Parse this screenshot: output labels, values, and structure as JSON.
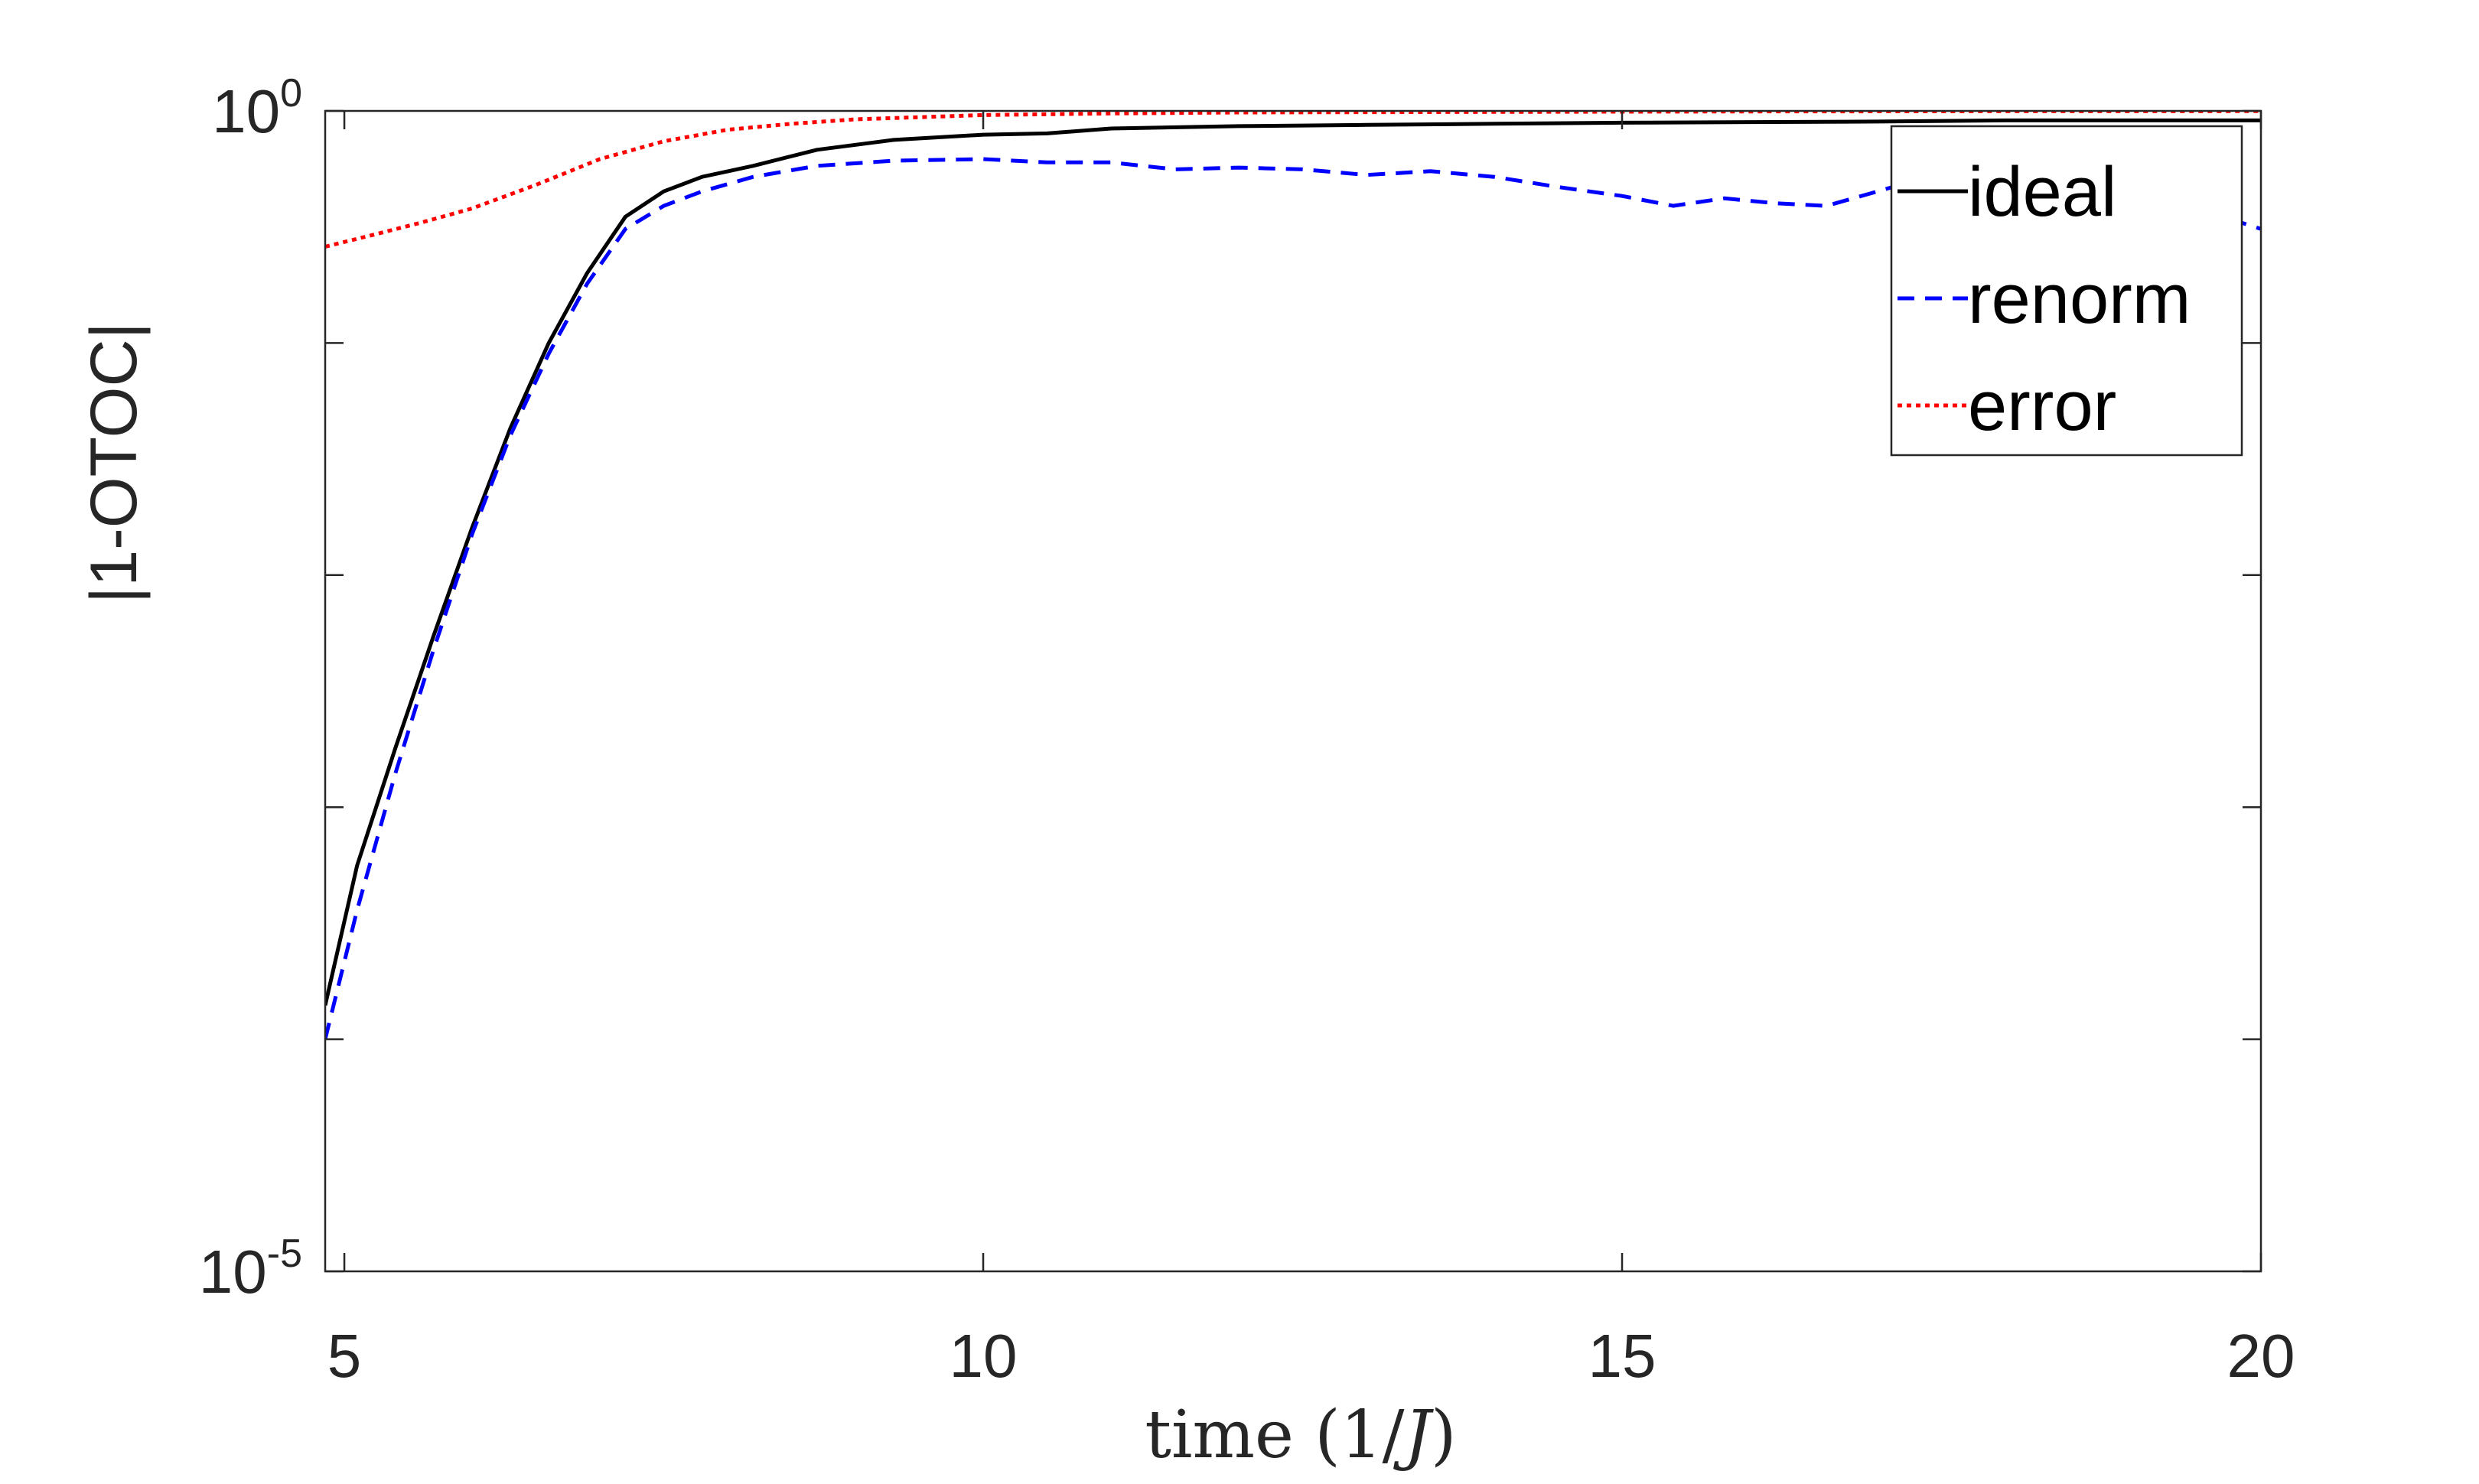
{
  "chart_data": {
    "type": "line",
    "title": "",
    "xlabel": "time (1/J)",
    "xlabel_parts": {
      "prefix": "time (1/",
      "variable": "J",
      "suffix": ")"
    },
    "ylabel": "|1-OTOC|",
    "xlim": [
      4.85,
      20
    ],
    "ylim": [
      1e-05,
      1.0
    ],
    "yscale": "log",
    "xticks": [
      5,
      10,
      15,
      20
    ],
    "xtick_labels": [
      "5",
      "10",
      "15",
      "20"
    ],
    "yticks": [
      1e-05,
      0.0001,
      0.001,
      0.01,
      0.1,
      1.0
    ],
    "ytick_labels": [
      {
        "base": "10",
        "exp": "-5"
      },
      {
        "base": "10",
        "exp": "0"
      }
    ],
    "grid": false,
    "legend_position": "top-right",
    "series": [
      {
        "name": "ideal",
        "color": "#000000",
        "style": "solid",
        "x": [
          4.85,
          5.1,
          5.4,
          5.7,
          6.0,
          6.3,
          6.6,
          6.9,
          7.2,
          7.5,
          7.8,
          8.2,
          8.7,
          9.3,
          10.0,
          10.5,
          11.0,
          12.0,
          13.0,
          14.0,
          15.0,
          16.0,
          17.0,
          18.0,
          19.0,
          20.0
        ],
        "y": [
          0.00014,
          0.00056,
          0.0018,
          0.0055,
          0.016,
          0.043,
          0.1,
          0.2,
          0.35,
          0.45,
          0.52,
          0.58,
          0.68,
          0.75,
          0.79,
          0.8,
          0.84,
          0.86,
          0.87,
          0.88,
          0.89,
          0.895,
          0.9,
          0.91,
          0.91,
          0.91
        ]
      },
      {
        "name": "renorm",
        "color": "#0000ff",
        "style": "dashed",
        "x": [
          4.85,
          5.1,
          5.4,
          5.7,
          6.0,
          6.3,
          6.6,
          6.9,
          7.2,
          7.5,
          7.8,
          8.2,
          8.7,
          9.3,
          10.0,
          10.5,
          11.0,
          11.5,
          12.0,
          12.5,
          13.0,
          13.5,
          14.0,
          14.5,
          15.0,
          15.4,
          15.8,
          16.2,
          16.6,
          17.0,
          17.5,
          18.0,
          18.5,
          19.0,
          19.5,
          20.0
        ],
        "y": [
          0.0001,
          0.00036,
          0.0014,
          0.0048,
          0.015,
          0.04,
          0.09,
          0.18,
          0.31,
          0.39,
          0.45,
          0.52,
          0.58,
          0.61,
          0.62,
          0.6,
          0.6,
          0.56,
          0.57,
          0.56,
          0.53,
          0.55,
          0.52,
          0.47,
          0.43,
          0.39,
          0.42,
          0.4,
          0.39,
          0.45,
          0.54,
          0.6,
          0.61,
          0.5,
          0.38,
          0.31
        ]
      },
      {
        "name": "error",
        "color": "#ff0000",
        "style": "dotted",
        "x": [
          4.85,
          5.2,
          5.6,
          6.0,
          6.5,
          7.0,
          7.5,
          8.0,
          8.5,
          9.0,
          10.0,
          11.0,
          12.0,
          14.0,
          16.0,
          18.0,
          20.0
        ],
        "y": [
          0.26,
          0.29,
          0.33,
          0.38,
          0.48,
          0.62,
          0.74,
          0.83,
          0.88,
          0.92,
          0.96,
          0.975,
          0.985,
          0.99,
          0.995,
          0.997,
          0.998
        ]
      }
    ]
  }
}
